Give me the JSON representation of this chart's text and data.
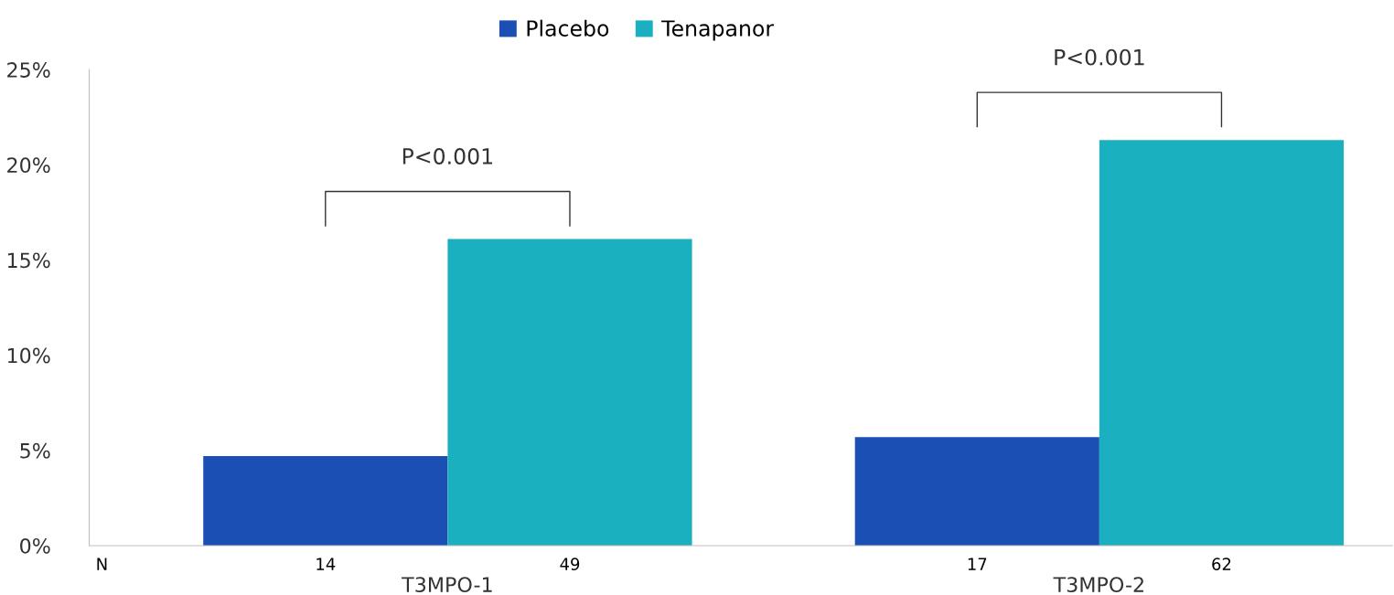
{
  "chart_data": {
    "type": "bar",
    "categories": [
      "T3MPO-1",
      "T3MPO-2"
    ],
    "series": [
      {
        "name": "Placebo",
        "color": "#1c4fb3",
        "values": [
          4.7,
          5.7
        ]
      },
      {
        "name": "Tenapanor",
        "color": "#1bb0bf",
        "values": [
          16.1,
          21.3
        ]
      }
    ],
    "ylim": [
      0,
      25
    ],
    "yticks": [
      {
        "value": 0,
        "label": "0%"
      },
      {
        "value": 5,
        "label": "5%"
      },
      {
        "value": 10,
        "label": "10%"
      },
      {
        "value": 15,
        "label": "15%"
      },
      {
        "value": 20,
        "label": "20%"
      },
      {
        "value": 25,
        "label": "25%"
      }
    ],
    "annotations": [
      "P<0.001",
      "P<0.001",
      "N",
      "14",
      "49",
      "17",
      "62"
    ],
    "legend": "top",
    "grid": false
  }
}
